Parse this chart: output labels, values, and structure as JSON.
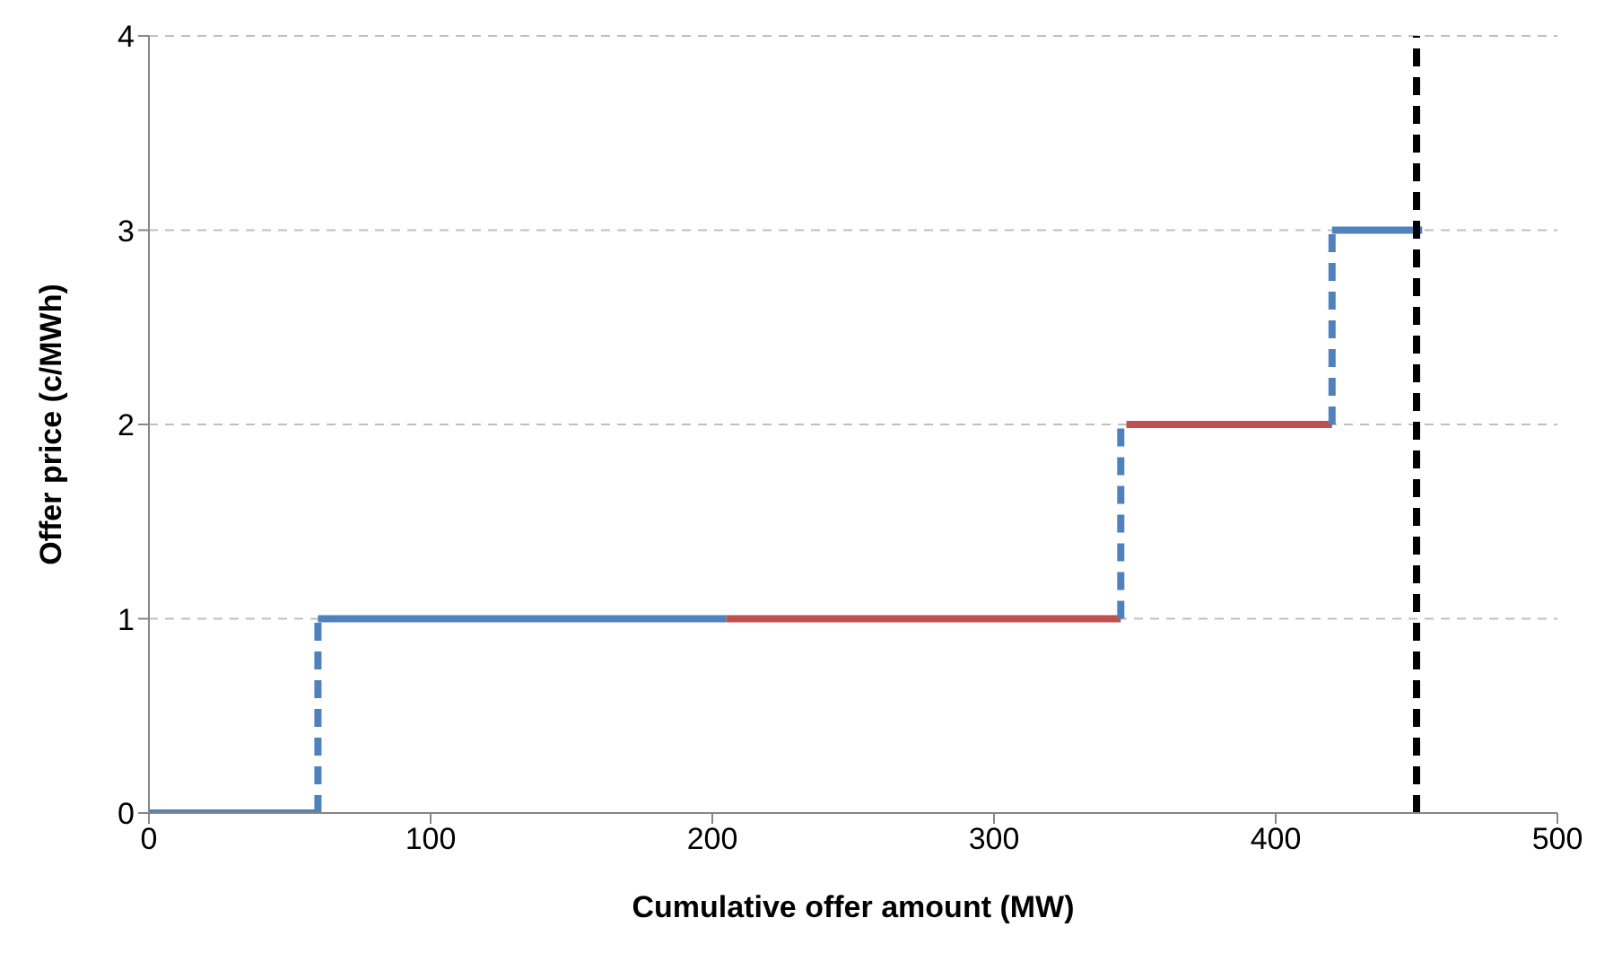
{
  "chart_data": {
    "type": "line",
    "xlabel": "Cumulative offer amount (MW)",
    "ylabel": "Offer price (c/MWh)",
    "xlim": [
      0,
      500
    ],
    "xticks": [
      0,
      100,
      200,
      300,
      400,
      500
    ],
    "ylim": [
      0,
      4
    ],
    "yticks": [
      0,
      1,
      2,
      3,
      4
    ],
    "grid": "y",
    "marker": "none",
    "series": [
      {
        "color": "#4f81bd",
        "x": [
          0,
          60
        ],
        "values": [
          0,
          0
        ],
        "line_style": "solid"
      },
      {
        "color": "#4f81bd",
        "x": [
          60,
          60
        ],
        "values": [
          0,
          1
        ],
        "line_style": "dashed"
      },
      {
        "color": "#4f81bd",
        "x": [
          60,
          205
        ],
        "values": [
          1,
          1
        ],
        "line_style": "solid"
      },
      {
        "color": "#c0504d",
        "x": [
          205,
          345
        ],
        "values": [
          1,
          1
        ],
        "line_style": "solid"
      },
      {
        "color": "#4f81bd",
        "x": [
          345,
          345
        ],
        "values": [
          1,
          2
        ],
        "line_style": "dashed"
      },
      {
        "color": "#c0504d",
        "x": [
          347,
          420
        ],
        "values": [
          2,
          2
        ],
        "line_style": "solid"
      },
      {
        "color": "#4f81bd",
        "x": [
          420,
          420
        ],
        "values": [
          2,
          3
        ],
        "line_style": "dashed"
      },
      {
        "color": "#4f81bd",
        "x": [
          420,
          452
        ],
        "values": [
          3,
          3
        ],
        "line_style": "solid"
      }
    ],
    "ref_lines": [
      {
        "axis": "x",
        "value": 450,
        "color": "#000000",
        "line_style": "dashed"
      }
    ]
  }
}
